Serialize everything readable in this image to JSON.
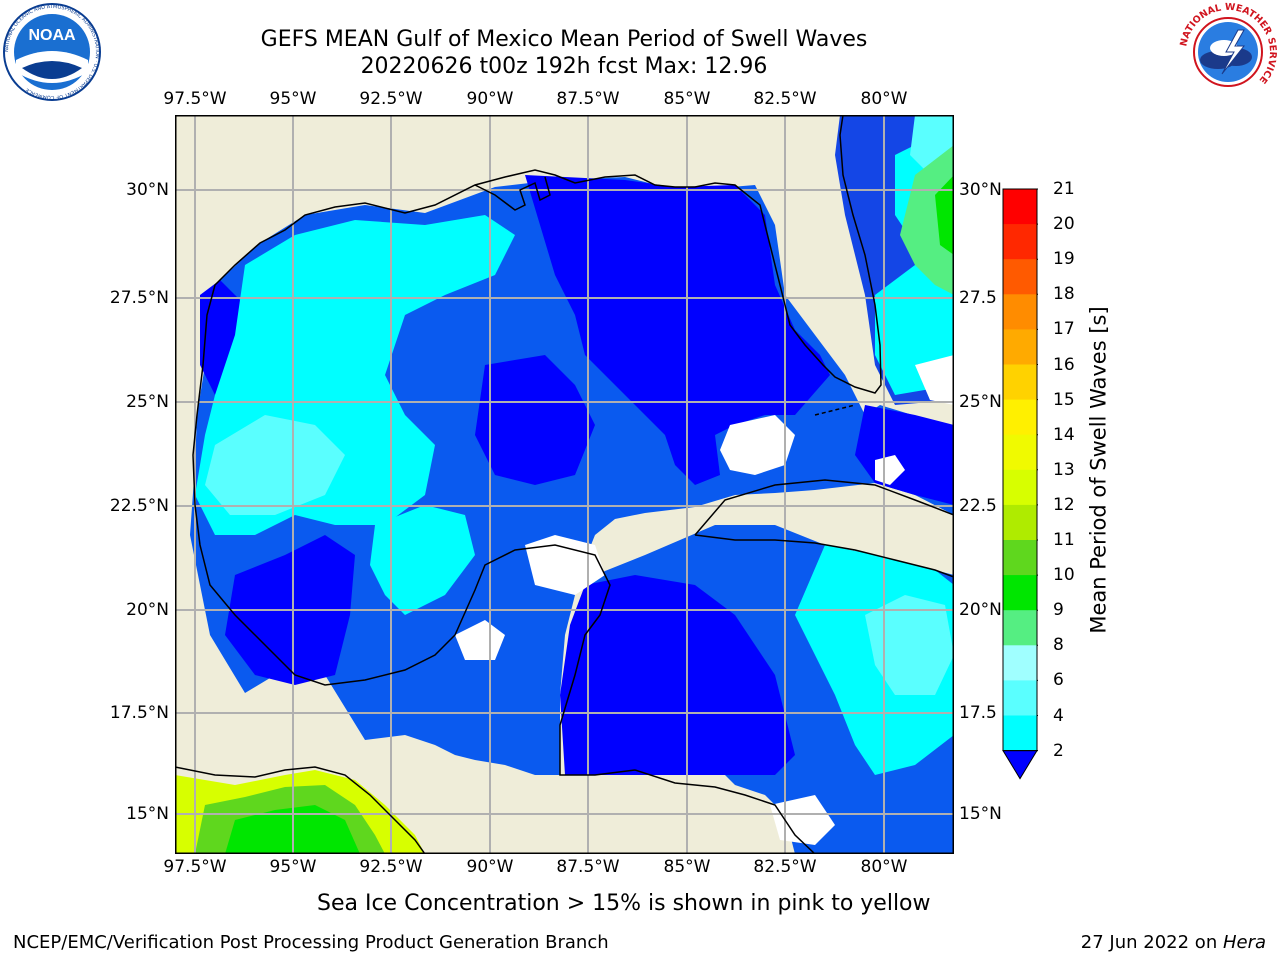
{
  "header": {
    "title_line1": "GEFS MEAN Gulf of Mexico Mean Period of Swell Waves",
    "title_line2": "20220626 t00z 192h fcst   Max: 12.96"
  },
  "logos": {
    "left": "NOAA",
    "left_ring_text": "NATIONAL OCEANIC AND ATMOSPHERIC ADMINISTRATION · U.S. DEPARTMENT OF COMMERCE",
    "right_ring_text": "NATIONAL WEATHER SERVICE"
  },
  "map": {
    "lon_ticks": [
      "97.5°W",
      "95°W",
      "92.5°W",
      "90°W",
      "87.5°W",
      "85°W",
      "82.5°W",
      "80°W"
    ],
    "lat_ticks_left": [
      "30°N",
      "27.5°N",
      "25°N",
      "22.5°N",
      "20°N",
      "17.5°N",
      "15°N"
    ],
    "lat_ticks_right": [
      "30°N",
      "27.5",
      "25°N",
      "22.5",
      "20°N",
      "17.5",
      "15°N"
    ],
    "colors": {
      "land": "#efedd9",
      "coast": "#000000",
      "grid": "#b0b0b0",
      "no_data": "#ffffff"
    }
  },
  "colorbar": {
    "label": "Mean Period of Swell Waves [s]",
    "ticks": [
      "21",
      "20",
      "19",
      "18",
      "17",
      "16",
      "15",
      "14",
      "13",
      "12",
      "11",
      "10",
      "9",
      "8",
      "6",
      "4",
      "2"
    ],
    "colors": [
      "#ff0000",
      "#ff2800",
      "#ff5a00",
      "#ff8c00",
      "#ffaa00",
      "#ffd200",
      "#fff000",
      "#f0fa00",
      "#d7ff00",
      "#afeb00",
      "#5fd71e",
      "#00e600",
      "#55ee82",
      "#a0ffff",
      "#5affff",
      "#00ffff",
      "#0082ff"
    ],
    "extend_color": "#0000ff"
  },
  "caption": "Sea Ice Concentration > 15% is shown in pink to yellow",
  "footer": {
    "left": "NCEP/EMC/Verification Post Processing Product Generation Branch",
    "right_date": "27 Jun 2022 on ",
    "right_host": "Hera"
  }
}
